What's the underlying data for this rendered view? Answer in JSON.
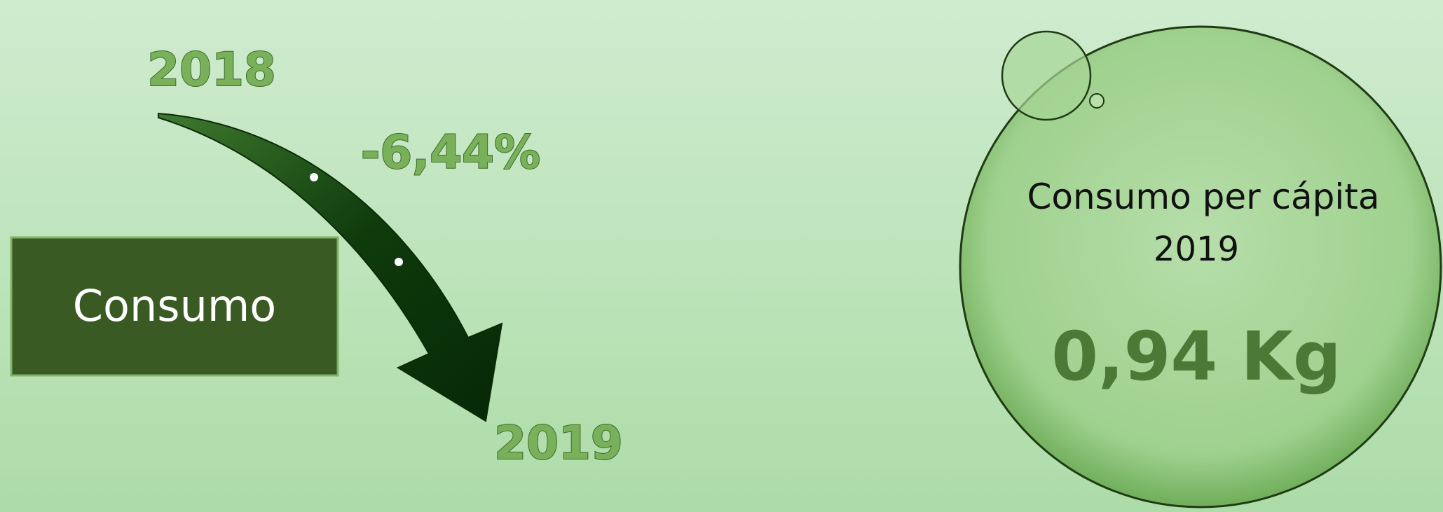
{
  "trend": {
    "from_year": "2018",
    "change": "-6,44%",
    "label": "Consumo",
    "to_year": "2019"
  },
  "bubble": {
    "title": "Consumo per cápita",
    "year": "2019",
    "value": "0,94 Kg"
  }
}
